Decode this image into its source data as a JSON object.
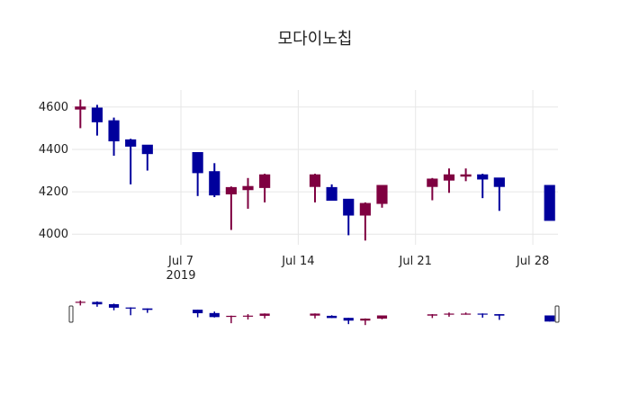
{
  "chart_data": {
    "type": "candlestick",
    "title": "모다이노칩",
    "xlabel": "",
    "ylabel": "",
    "ylim": [
      3950,
      4680
    ],
    "y_ticks": [
      4000,
      4200,
      4400,
      4600
    ],
    "x_range": [
      "2019-07-01",
      "2019-07-29"
    ],
    "x_ticks": [
      {
        "date": "2019-07-07",
        "label": "Jul 7",
        "sublabel": "2019"
      },
      {
        "date": "2019-07-14",
        "label": "Jul 14",
        "sublabel": ""
      },
      {
        "date": "2019-07-21",
        "label": "Jul 21",
        "sublabel": ""
      },
      {
        "date": "2019-07-28",
        "label": "Jul 28",
        "sublabel": ""
      }
    ],
    "increasing_color": "#7f0040",
    "decreasing_color": "#00009c",
    "grid": true,
    "range_slider": true,
    "candles": [
      {
        "date": "2019-07-01",
        "open": 4590,
        "high": 4635,
        "low": 4500,
        "close": 4600
      },
      {
        "date": "2019-07-02",
        "open": 4595,
        "high": 4610,
        "low": 4465,
        "close": 4530
      },
      {
        "date": "2019-07-03",
        "open": 4535,
        "high": 4550,
        "low": 4370,
        "close": 4440
      },
      {
        "date": "2019-07-04",
        "open": 4445,
        "high": 4450,
        "low": 4235,
        "close": 4415
      },
      {
        "date": "2019-07-05",
        "open": 4420,
        "high": 4420,
        "low": 4300,
        "close": 4380
      },
      {
        "date": "2019-07-08",
        "open": 4385,
        "high": 4385,
        "low": 4180,
        "close": 4290
      },
      {
        "date": "2019-07-09",
        "open": 4295,
        "high": 4335,
        "low": 4175,
        "close": 4185
      },
      {
        "date": "2019-07-10",
        "open": 4190,
        "high": 4225,
        "low": 4020,
        "close": 4220
      },
      {
        "date": "2019-07-11",
        "open": 4210,
        "high": 4265,
        "low": 4120,
        "close": 4225
      },
      {
        "date": "2019-07-12",
        "open": 4220,
        "high": 4285,
        "low": 4150,
        "close": 4280
      },
      {
        "date": "2019-07-15",
        "open": 4225,
        "high": 4285,
        "low": 4150,
        "close": 4280
      },
      {
        "date": "2019-07-16",
        "open": 4220,
        "high": 4235,
        "low": 4160,
        "close": 4160
      },
      {
        "date": "2019-07-17",
        "open": 4165,
        "high": 4165,
        "low": 3995,
        "close": 4090
      },
      {
        "date": "2019-07-18",
        "open": 4090,
        "high": 4150,
        "low": 3970,
        "close": 4145
      },
      {
        "date": "2019-07-19",
        "open": 4145,
        "high": 4230,
        "low": 4125,
        "close": 4230
      },
      {
        "date": "2019-07-22",
        "open": 4225,
        "high": 4265,
        "low": 4160,
        "close": 4260
      },
      {
        "date": "2019-07-23",
        "open": 4255,
        "high": 4310,
        "low": 4195,
        "close": 4280
      },
      {
        "date": "2019-07-24",
        "open": 4275,
        "high": 4310,
        "low": 4250,
        "close": 4280
      },
      {
        "date": "2019-07-25",
        "open": 4280,
        "high": 4285,
        "low": 4170,
        "close": 4260
      },
      {
        "date": "2019-07-26",
        "open": 4265,
        "high": 4265,
        "low": 4110,
        "close": 4225
      },
      {
        "date": "2019-07-29",
        "open": 4230,
        "high": 4230,
        "low": 4065,
        "close": 4065
      }
    ]
  }
}
